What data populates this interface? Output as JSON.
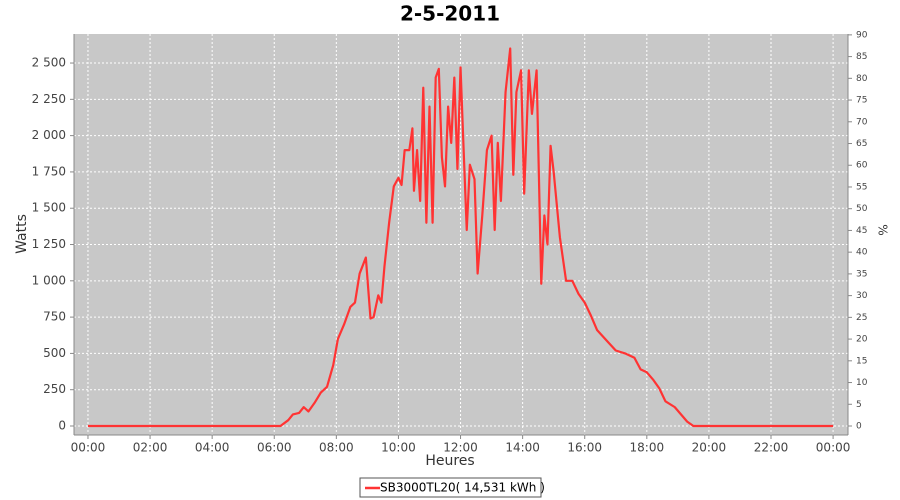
{
  "chart_data": {
    "type": "line",
    "title": "2-5-2011",
    "x_label": "Heures",
    "y_label": "Watts",
    "y2_label": "%",
    "x": [
      0,
      6.2,
      6.45,
      6.6,
      6.8,
      6.95,
      7.1,
      7.3,
      7.5,
      7.7,
      7.9,
      8.05,
      8.25,
      8.45,
      8.6,
      8.75,
      8.95,
      9.1,
      9.2,
      9.35,
      9.45,
      9.55,
      9.7,
      9.85,
      10.0,
      10.1,
      10.2,
      10.35,
      10.45,
      10.5,
      10.6,
      10.7,
      10.8,
      10.9,
      11.0,
      11.1,
      11.2,
      11.3,
      11.4,
      11.5,
      11.6,
      11.7,
      11.8,
      11.9,
      12.0,
      12.1,
      12.2,
      12.3,
      12.45,
      12.55,
      12.7,
      12.85,
      13.0,
      13.1,
      13.2,
      13.3,
      13.45,
      13.6,
      13.7,
      13.8,
      13.95,
      14.05,
      14.2,
      14.3,
      14.45,
      14.6,
      14.7,
      14.8,
      14.9,
      15.0,
      15.2,
      15.4,
      15.6,
      15.8,
      16.0,
      16.2,
      16.4,
      16.7,
      17.0,
      17.3,
      17.6,
      17.8,
      18.0,
      18.2,
      18.4,
      18.6,
      18.9,
      19.1,
      19.3,
      19.5,
      24.0
    ],
    "series": [
      {
        "name": "SB3000TL20( 14,531 kWh )",
        "color": "#ff3333",
        "values": [
          0,
          0,
          40,
          80,
          90,
          130,
          100,
          160,
          230,
          270,
          420,
          600,
          700,
          820,
          850,
          1050,
          1160,
          740,
          750,
          900,
          850,
          1100,
          1400,
          1650,
          1710,
          1660,
          1900,
          1900,
          2050,
          1620,
          1900,
          1550,
          2330,
          1400,
          2200,
          1400,
          2400,
          2460,
          1850,
          1650,
          2200,
          1950,
          2400,
          1770,
          2470,
          1900,
          1350,
          1800,
          1700,
          1050,
          1450,
          1900,
          2000,
          1350,
          1950,
          1550,
          2300,
          2600,
          1730,
          2300,
          2450,
          1600,
          2450,
          2150,
          2450,
          980,
          1450,
          1250,
          1930,
          1750,
          1300,
          1000,
          1000,
          910,
          850,
          760,
          660,
          590,
          520,
          500,
          470,
          390,
          370,
          320,
          260,
          170,
          130,
          80,
          30,
          0,
          0
        ]
      }
    ],
    "xlim": [
      -0.45,
      24.48
    ],
    "xticks": [
      {
        "value": 0,
        "label": "00:00"
      },
      {
        "value": 2,
        "label": "02:00"
      },
      {
        "value": 4,
        "label": "04:00"
      },
      {
        "value": 6,
        "label": "06:00"
      },
      {
        "value": 8,
        "label": "08:00"
      },
      {
        "value": 10,
        "label": "10:00"
      },
      {
        "value": 12,
        "label": "12:00"
      },
      {
        "value": 14,
        "label": "14:00"
      },
      {
        "value": 16,
        "label": "16:00"
      },
      {
        "value": 18,
        "label": "18:00"
      },
      {
        "value": 20,
        "label": "20:00"
      },
      {
        "value": 22,
        "label": "22:00"
      },
      {
        "value": 24,
        "label": "00:00"
      }
    ],
    "ylim": [
      -62,
      2700
    ],
    "yticks": [
      0,
      250,
      500,
      750,
      {
        "value": 1000,
        "label": "1 000"
      },
      {
        "value": 1250,
        "label": "1 250"
      },
      {
        "value": 1500,
        "label": "1 500"
      },
      {
        "value": 1750,
        "label": "1 750"
      },
      {
        "value": 2000,
        "label": "2 000"
      },
      {
        "value": 2250,
        "label": "2 250"
      },
      {
        "value": 2500,
        "label": "2 500"
      }
    ],
    "y2lim": [
      -2.07,
      90.2
    ],
    "y2ticks": [
      0,
      5,
      10,
      15,
      20,
      25,
      30,
      35,
      40,
      45,
      50,
      55,
      60,
      65,
      70,
      75,
      80,
      85,
      90
    ],
    "grid": true
  }
}
